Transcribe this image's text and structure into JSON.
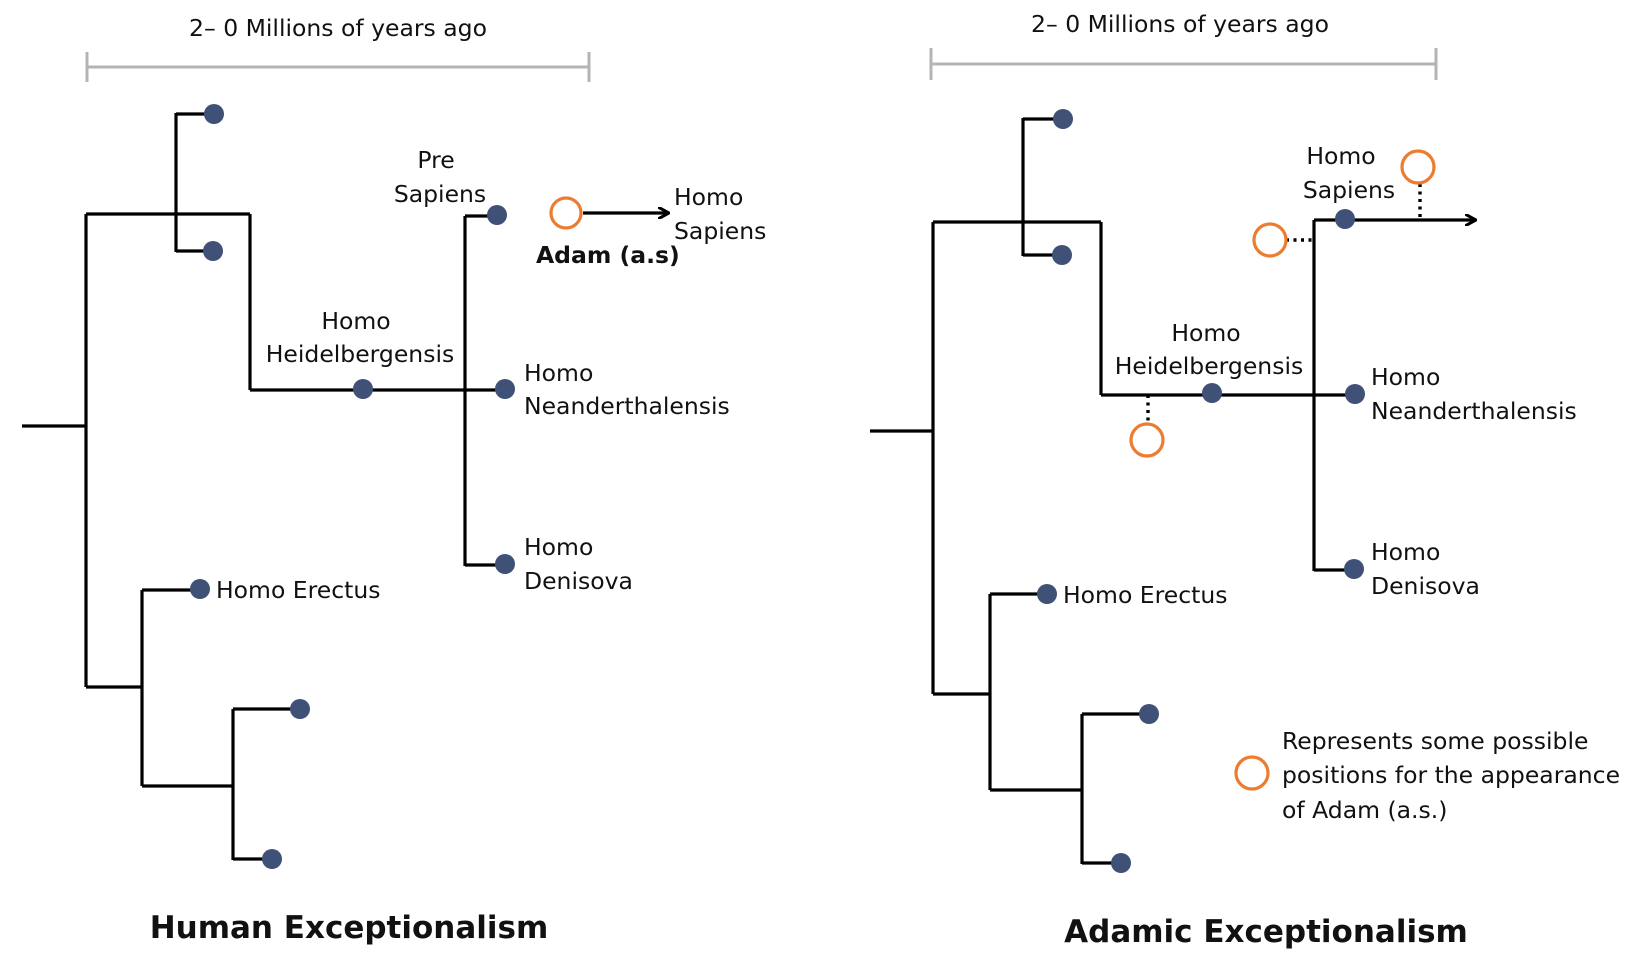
{
  "left": {
    "scale_label": "2– 0 Millions of years ago",
    "pre_sapiens": [
      "Pre",
      "Sapiens"
    ],
    "homo_sapiens": [
      "Homo",
      "Sapiens"
    ],
    "adam_label": "Adam (a.s)",
    "heidelbergensis": [
      "Homo",
      "Heidelbergensis"
    ],
    "neanderthalensis": [
      "Homo",
      "Neanderthalensis"
    ],
    "denisova": [
      "Homo",
      "Denisova"
    ],
    "erectus": "Homo Erectus",
    "title": "Human Exceptionalism"
  },
  "right": {
    "scale_label": "2– 0 Millions of years ago",
    "homo_sapiens": [
      "Homo",
      "Sapiens"
    ],
    "heidelbergensis": [
      "Homo",
      "Heidelbergensis"
    ],
    "neanderthalensis": [
      "Homo",
      "Neanderthalensis"
    ],
    "denisova": [
      "Homo",
      "Denisova"
    ],
    "erectus": "Homo Erectus",
    "legend": [
      "Represents some possible",
      "positions for the appearance",
      "of Adam (a.s.)"
    ],
    "title": "Adamic Exceptionalism"
  },
  "colors": {
    "node": "#3f5176",
    "adam_marker": "#ec7c30",
    "scale_bar": "#b4b4b4"
  }
}
